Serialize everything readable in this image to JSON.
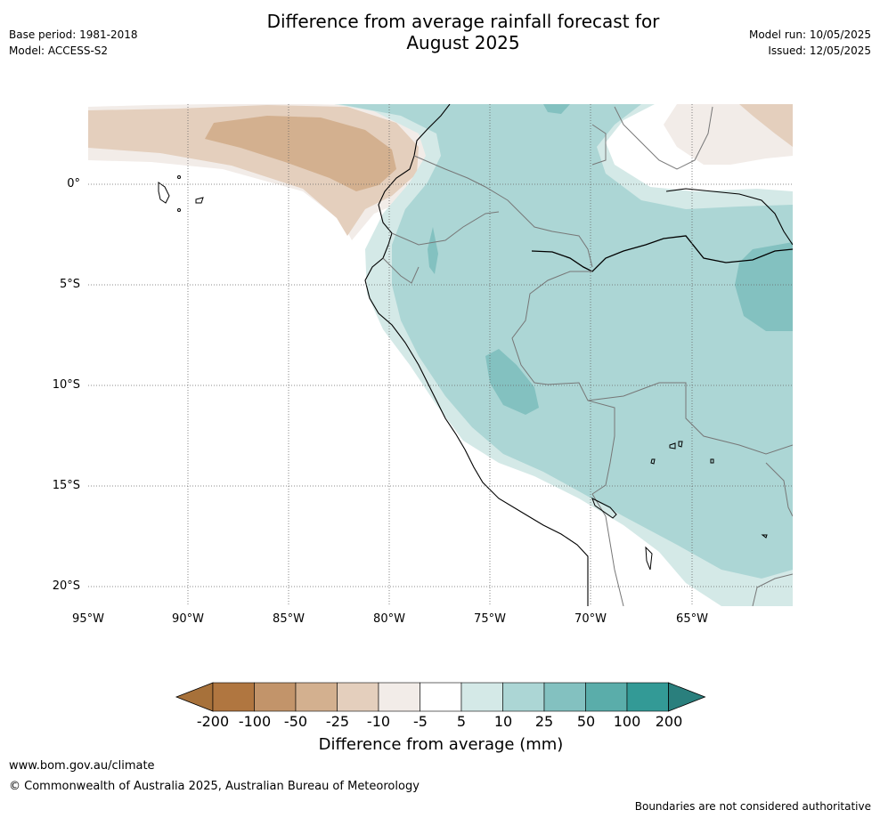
{
  "header": {
    "title_line1": "Difference from average rainfall forecast for",
    "title_line2": "August 2025",
    "base_period": "Base period: 1981-2018",
    "model": "Model: ACCESS-S2",
    "model_run": "Model run: 10/05/2025",
    "issued": "Issued: 12/05/2025"
  },
  "map": {
    "lat_labels": [
      "0°",
      "5°S",
      "10°S",
      "15°S",
      "20°S"
    ],
    "lon_labels": [
      "95°W",
      "90°W",
      "85°W",
      "80°W",
      "75°W",
      "70°W",
      "65°W"
    ]
  },
  "colorbar": {
    "ticks": [
      "-200",
      "-100",
      "-50",
      "-25",
      "-10",
      "-5",
      "5",
      "10",
      "25",
      "50",
      "100",
      "200"
    ],
    "colors": [
      "#a7713a",
      "#b07640",
      "#c2946a",
      "#d3b08f",
      "#e4cfbd",
      "#f2ece8",
      "#ffffff",
      "#d4e9e7",
      "#acd6d5",
      "#83c1c0",
      "#5aadaa",
      "#339a96",
      "#2a7f7d"
    ],
    "title": "Difference from average (mm)"
  },
  "footer": {
    "website": "www.bom.gov.au/climate",
    "copyright": "© Commonwealth of Australia 2025, Australian Bureau of Meteorology",
    "disclaimer": "Boundaries are not considered authoritative"
  }
}
